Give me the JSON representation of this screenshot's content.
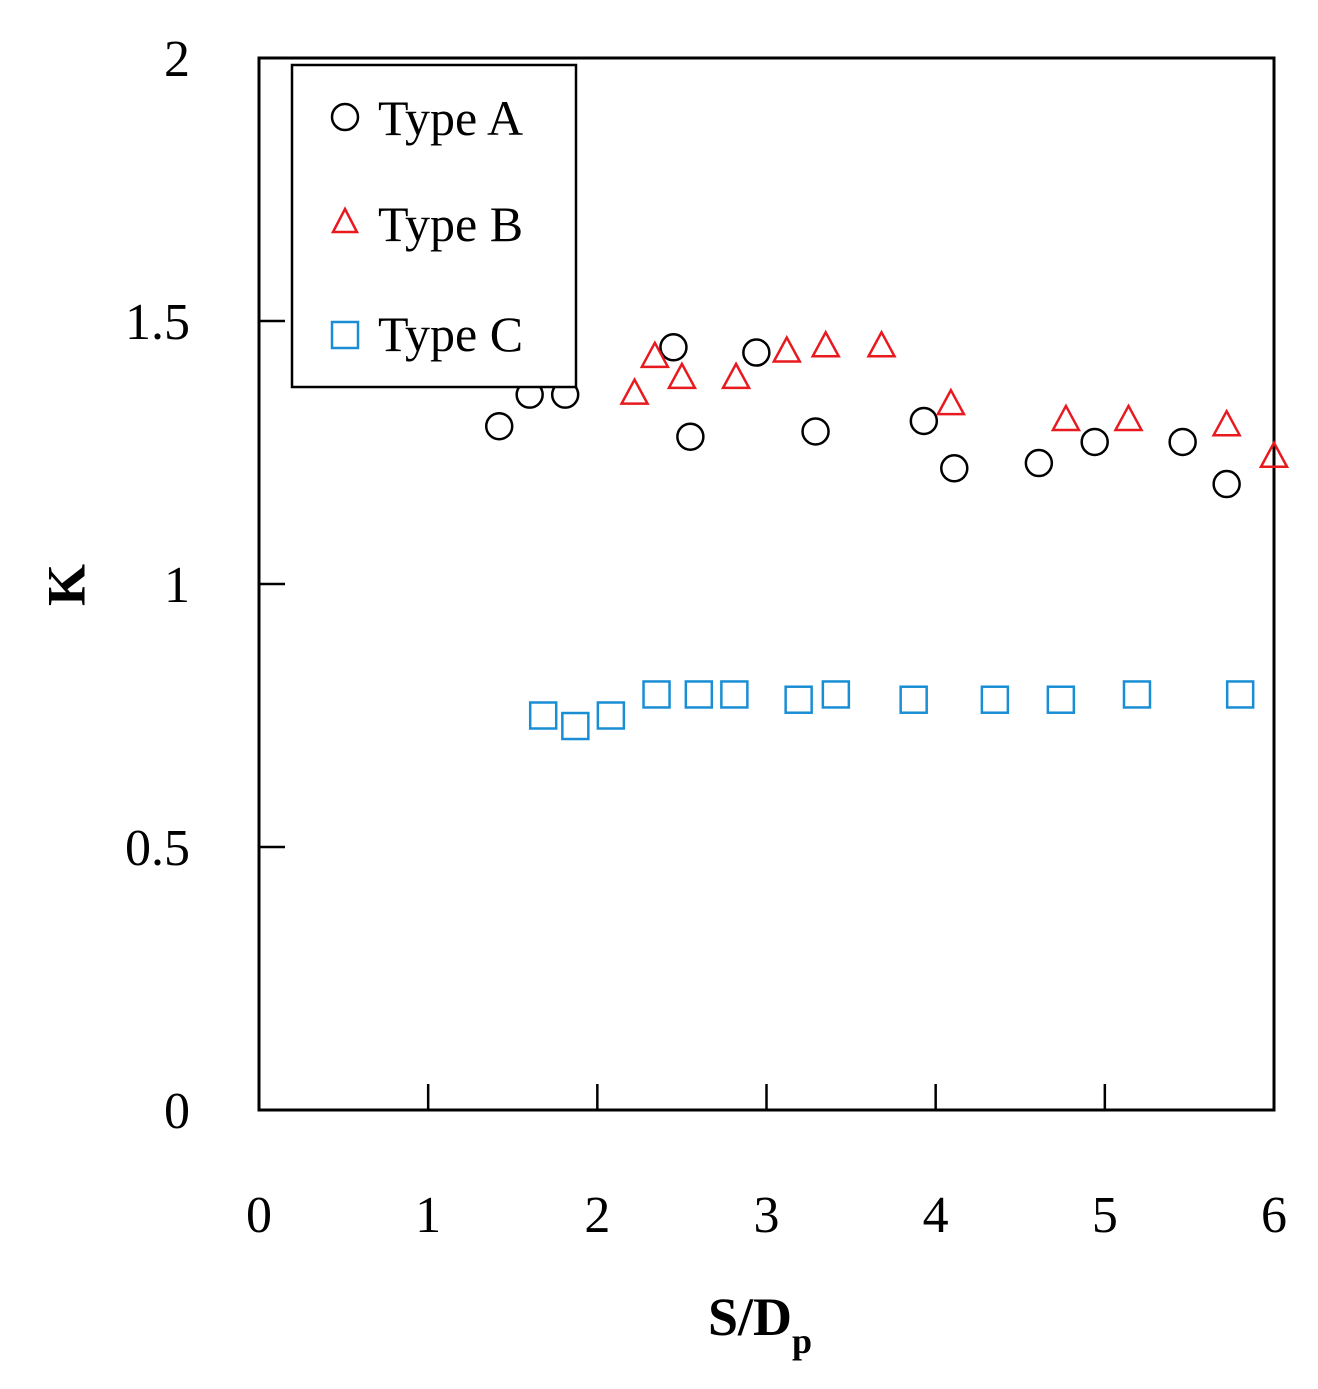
{
  "chart_data": {
    "type": "scatter",
    "title": "",
    "xlabel": "S/D",
    "xlabel_sub": "p",
    "ylabel": "K",
    "xlim": [
      0,
      6
    ],
    "ylim": [
      0,
      2
    ],
    "x_ticks": [
      0,
      1,
      2,
      3,
      4,
      5,
      6
    ],
    "y_ticks": [
      0,
      0.5,
      1,
      1.5,
      2
    ],
    "x_tick_labels": [
      "0",
      "1",
      "2",
      "3",
      "4",
      "5",
      "6"
    ],
    "y_tick_labels": [
      "0",
      "0.5",
      "1",
      "1.5",
      "2"
    ],
    "legend_position": "top-left",
    "series": [
      {
        "name": "Type A",
        "marker": "circle",
        "color": "#000000",
        "points": [
          {
            "x": 1.42,
            "y": 1.3
          },
          {
            "x": 1.6,
            "y": 1.36
          },
          {
            "x": 1.81,
            "y": 1.36
          },
          {
            "x": 2.45,
            "y": 1.45
          },
          {
            "x": 2.55,
            "y": 1.28
          },
          {
            "x": 2.94,
            "y": 1.44
          },
          {
            "x": 3.29,
            "y": 1.29
          },
          {
            "x": 3.93,
            "y": 1.31
          },
          {
            "x": 4.11,
            "y": 1.22
          },
          {
            "x": 4.61,
            "y": 1.23
          },
          {
            "x": 4.94,
            "y": 1.27
          },
          {
            "x": 5.46,
            "y": 1.27
          },
          {
            "x": 5.72,
            "y": 1.19
          }
        ]
      },
      {
        "name": "Type B",
        "marker": "triangle",
        "color": "#e8191f",
        "points": [
          {
            "x": 2.22,
            "y": 1.36
          },
          {
            "x": 2.34,
            "y": 1.43
          },
          {
            "x": 2.5,
            "y": 1.39
          },
          {
            "x": 2.82,
            "y": 1.39
          },
          {
            "x": 3.12,
            "y": 1.44
          },
          {
            "x": 3.35,
            "y": 1.45
          },
          {
            "x": 3.68,
            "y": 1.45
          },
          {
            "x": 4.09,
            "y": 1.34
          },
          {
            "x": 4.77,
            "y": 1.31
          },
          {
            "x": 5.14,
            "y": 1.31
          },
          {
            "x": 5.72,
            "y": 1.3
          },
          {
            "x": 6.0,
            "y": 1.24
          }
        ]
      },
      {
        "name": "Type C",
        "marker": "square",
        "color": "#1a8ed4",
        "points": [
          {
            "x": 1.68,
            "y": 0.75
          },
          {
            "x": 1.87,
            "y": 0.73
          },
          {
            "x": 2.08,
            "y": 0.75
          },
          {
            "x": 2.35,
            "y": 0.79
          },
          {
            "x": 2.6,
            "y": 0.79
          },
          {
            "x": 2.81,
            "y": 0.79
          },
          {
            "x": 3.19,
            "y": 0.78
          },
          {
            "x": 3.41,
            "y": 0.79
          },
          {
            "x": 3.87,
            "y": 0.78
          },
          {
            "x": 4.35,
            "y": 0.78
          },
          {
            "x": 4.74,
            "y": 0.78
          },
          {
            "x": 5.19,
            "y": 0.79
          },
          {
            "x": 5.8,
            "y": 0.79
          }
        ]
      }
    ]
  }
}
